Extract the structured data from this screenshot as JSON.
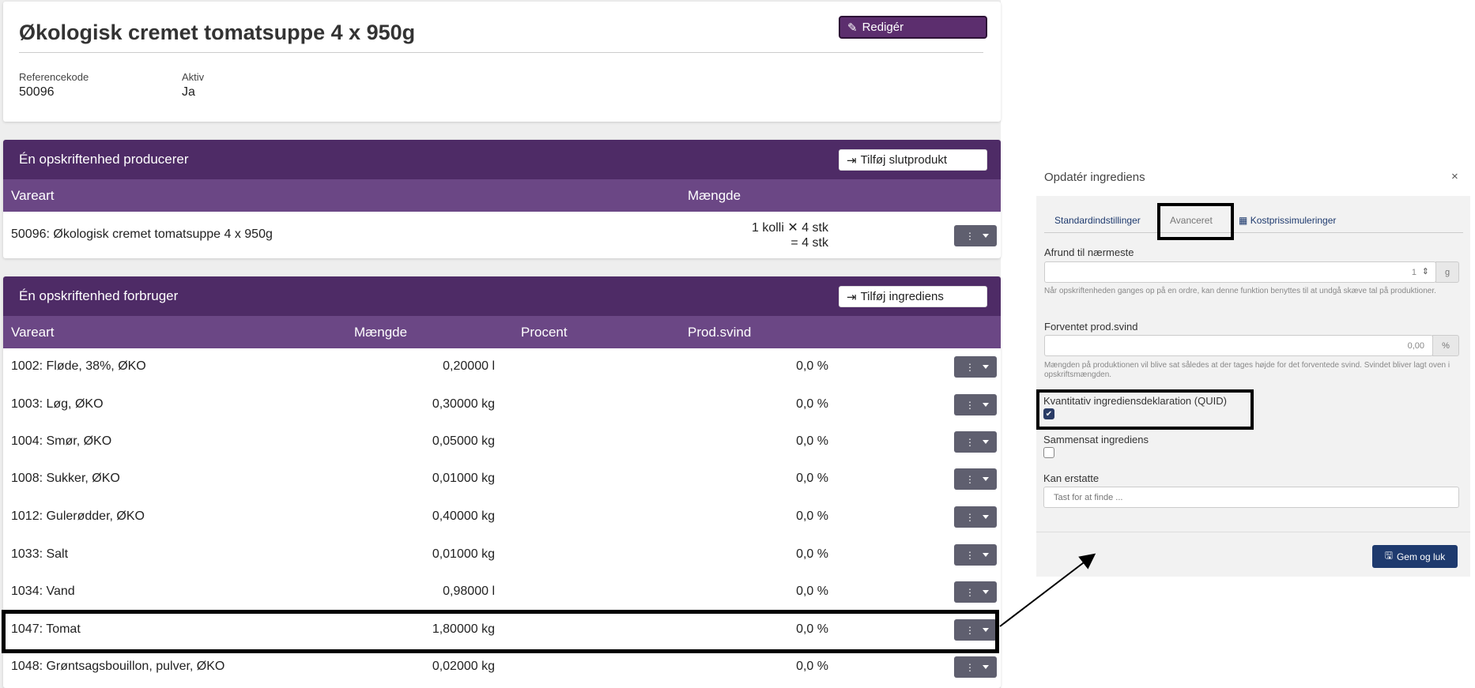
{
  "product": {
    "title": "Økologisk cremet tomatsuppe 4 x 950g",
    "edit_label": "Redigér",
    "meta": [
      {
        "label": "Referencekode",
        "value": "50096"
      },
      {
        "label": "Aktiv",
        "value": "Ja"
      }
    ]
  },
  "produces": {
    "title": "Én opskriftenhed producerer",
    "add_label": "Tilføj slutprodukt",
    "columns": {
      "vareart": "Vareart",
      "maengde": "Mængde"
    },
    "row": {
      "name": "50096: Økologisk cremet tomatsuppe 4 x 950g",
      "line1": "1 kolli ✕ 4 stk",
      "line2": "= 4 stk"
    }
  },
  "consumes": {
    "title": "Én opskriftenhed forbruger",
    "add_label": "Tilføj ingrediens",
    "columns": {
      "vareart": "Vareart",
      "maengde": "Mængde",
      "procent": "Procent",
      "prodsvind": "Prod.svind"
    },
    "rows": [
      {
        "name": "1002: Fløde, 38%, ØKO",
        "amount": "0,20000 l",
        "svind": "0,0 %"
      },
      {
        "name": "1003: Løg, ØKO",
        "amount": "0,30000 kg",
        "svind": "0,0 %"
      },
      {
        "name": "1004: Smør, ØKO",
        "amount": "0,05000 kg",
        "svind": "0,0 %"
      },
      {
        "name": "1008: Sukker, ØKO",
        "amount": "0,01000 kg",
        "svind": "0,0 %"
      },
      {
        "name": "1012: Gulerødder, ØKO",
        "amount": "0,40000 kg",
        "svind": "0,0 %"
      },
      {
        "name": "1033: Salt",
        "amount": "0,01000 kg",
        "svind": "0,0 %"
      },
      {
        "name": "1034: Vand",
        "amount": "0,98000 l",
        "svind": "0,0 %"
      },
      {
        "name": "1047: Tomat",
        "amount": "1,80000 kg",
        "svind": "0,0 %"
      },
      {
        "name": "1048: Grøntsagsbouillon, pulver, ØKO",
        "amount": "0,02000 kg",
        "svind": "0,0 %"
      }
    ]
  },
  "modal": {
    "title": "Opdatér ingrediens",
    "close": "×",
    "tabs": [
      "Standardindstillinger",
      "Avanceret",
      "Kostprissimuleringer"
    ],
    "active_tab": "Avanceret",
    "round_label": "Afrund til nærmeste",
    "round_value": "1",
    "round_unit": "g",
    "round_help": "Når opskriftenheden ganges op på en ordre, kan denne funktion benyttes til at undgå skæve tal på produktioner.",
    "svind_label": "Forventet prod.svind",
    "svind_value": "0,00",
    "svind_unit": "%",
    "svind_help": "Mængden på produktionen vil blive sat således at der tages højde for det forventede svind. Svindet bliver lagt oven i opskriftsmængden.",
    "quid_label": "Kvantitativ ingrediensdeklaration (QUID)",
    "quid_checked": true,
    "composite_label": "Sammensat ingrediens",
    "composite_checked": false,
    "replace_label": "Kan erstatte",
    "replace_placeholder": "Tast for at finde ...",
    "save_label": "Gem og luk"
  },
  "colors": {
    "section_header": "#4e2b66",
    "column_header": "#6b4785",
    "edit_button": "#5c2e6e",
    "save_button": "#1e3a6e",
    "row_action": "#5f5f6f"
  }
}
